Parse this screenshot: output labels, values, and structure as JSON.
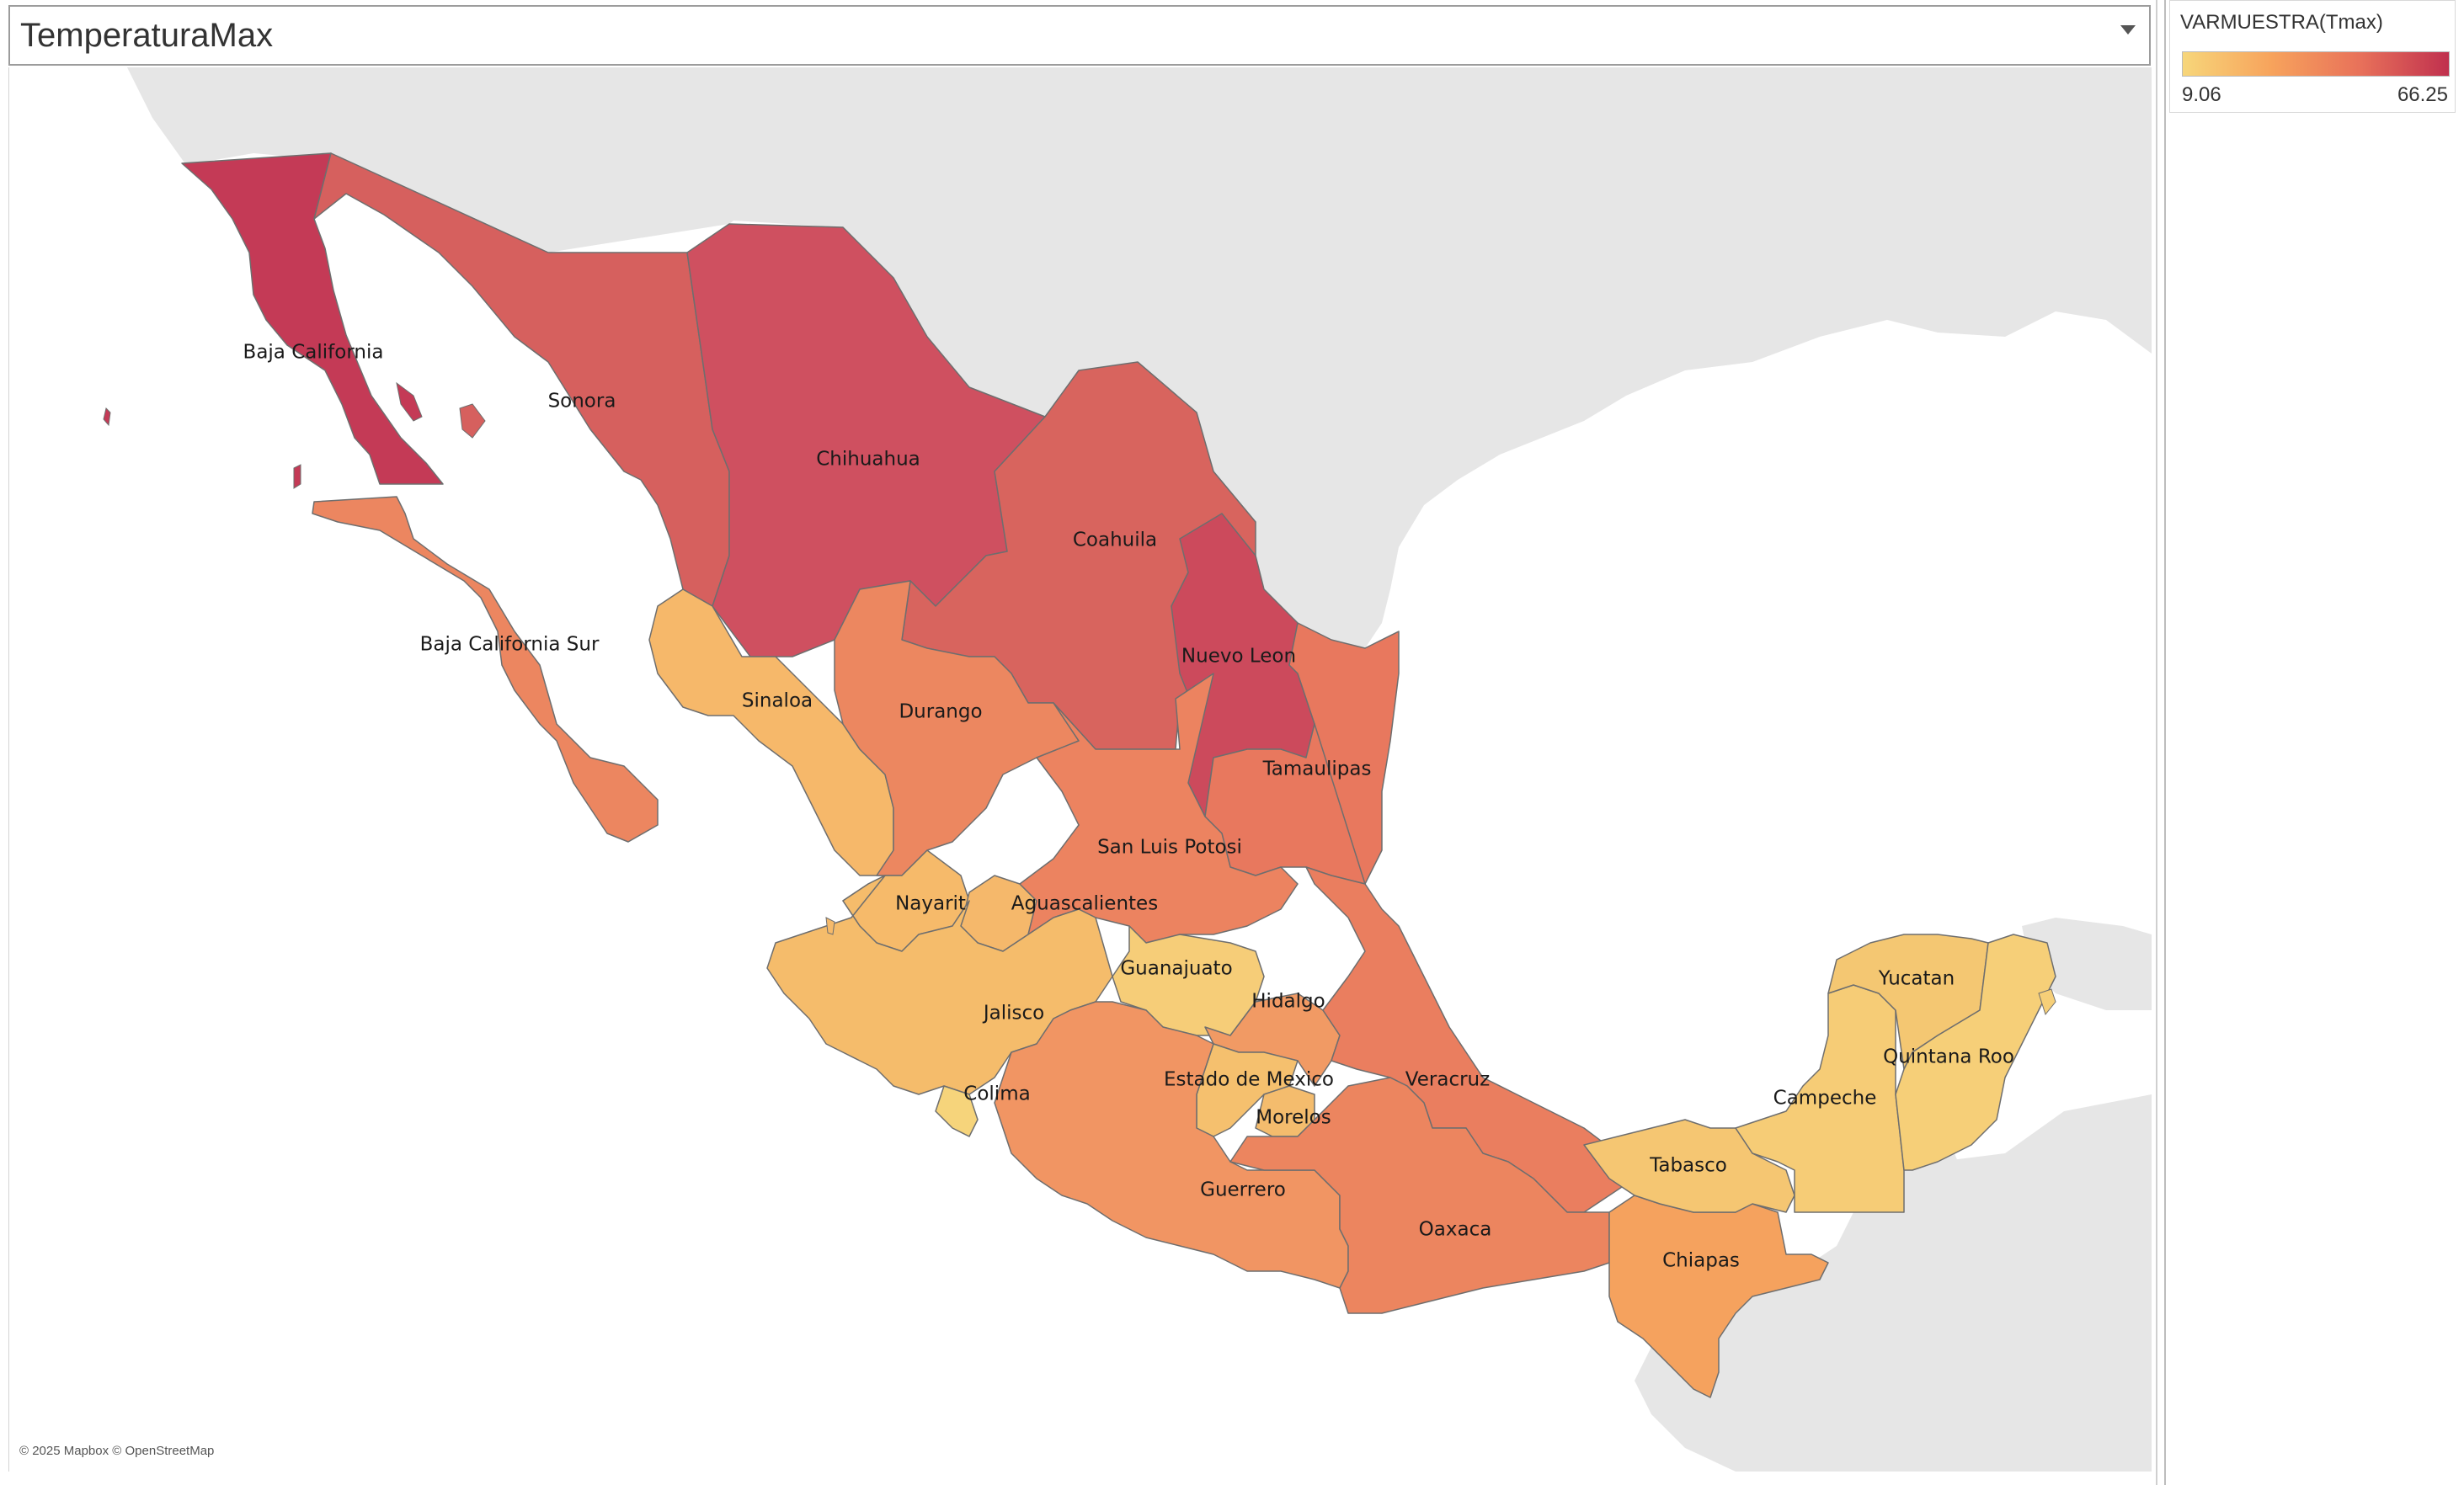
{
  "title": "TemperaturaMax",
  "legend": {
    "title": "VARMUESTRA(Tmax)",
    "min_label": "9.06",
    "max_label": "66.25",
    "min": 9.06,
    "max": 66.25,
    "colors": [
      "#f7d67a",
      "#f7a35c",
      "#e8715a",
      "#c0304e"
    ]
  },
  "attribution": "© 2025 Mapbox © OpenStreetMap",
  "states": [
    {
      "name": "Baja California",
      "value": 62,
      "color": "#c43a56"
    },
    {
      "name": "Sonora",
      "value": 50,
      "color": "#d6605e"
    },
    {
      "name": "Chihuahua",
      "value": 55,
      "color": "#cf5060"
    },
    {
      "name": "Coahuila",
      "value": 48,
      "color": "#d8645e"
    },
    {
      "name": "Nuevo Leon",
      "value": 56,
      "color": "#cc4a5c"
    },
    {
      "name": "Tamaulipas",
      "value": 38,
      "color": "#e8785e"
    },
    {
      "name": "Baja California Sur",
      "value": 36,
      "color": "#ec8660"
    },
    {
      "name": "Sinaloa",
      "value": 18,
      "color": "#f6b86a"
    },
    {
      "name": "Durango",
      "value": 34,
      "color": "#ec8760"
    },
    {
      "name": "Nayarit",
      "value": 17,
      "color": "#f6ba6a"
    },
    {
      "name": "Aguascalientes",
      "value": 16,
      "color": "#f5b86b"
    },
    {
      "name": "San Luis Potosi",
      "value": 34,
      "color": "#ec8360"
    },
    {
      "name": "Guanajuato",
      "value": 11,
      "color": "#f6cd78"
    },
    {
      "name": "Hidalgo",
      "value": 28,
      "color": "#f19a64"
    },
    {
      "name": "Jalisco",
      "value": 15,
      "color": "#f5bc6b"
    },
    {
      "name": "Colima",
      "value": 10,
      "color": "#f6d47b"
    },
    {
      "name": "Estado de Mexico",
      "value": 14,
      "color": "#f5c06e"
    },
    {
      "name": "Morelos",
      "value": 15,
      "color": "#f4bc6d"
    },
    {
      "name": "Veracruz",
      "value": 35,
      "color": "#ea7e5f"
    },
    {
      "name": "Guerrero",
      "value": 27,
      "color": "#f19563"
    },
    {
      "name": "Oaxaca",
      "value": 33,
      "color": "#ec855f"
    },
    {
      "name": "Chiapas",
      "value": 24,
      "color": "#f5a25e"
    },
    {
      "name": "Tabasco",
      "value": 12,
      "color": "#f5c672"
    },
    {
      "name": "Campeche",
      "value": 12,
      "color": "#f6cc76"
    },
    {
      "name": "Yucatan",
      "value": 13,
      "color": "#f4c772"
    },
    {
      "name": "Quintana Roo",
      "value": 11,
      "color": "#f6cf78"
    }
  ]
}
